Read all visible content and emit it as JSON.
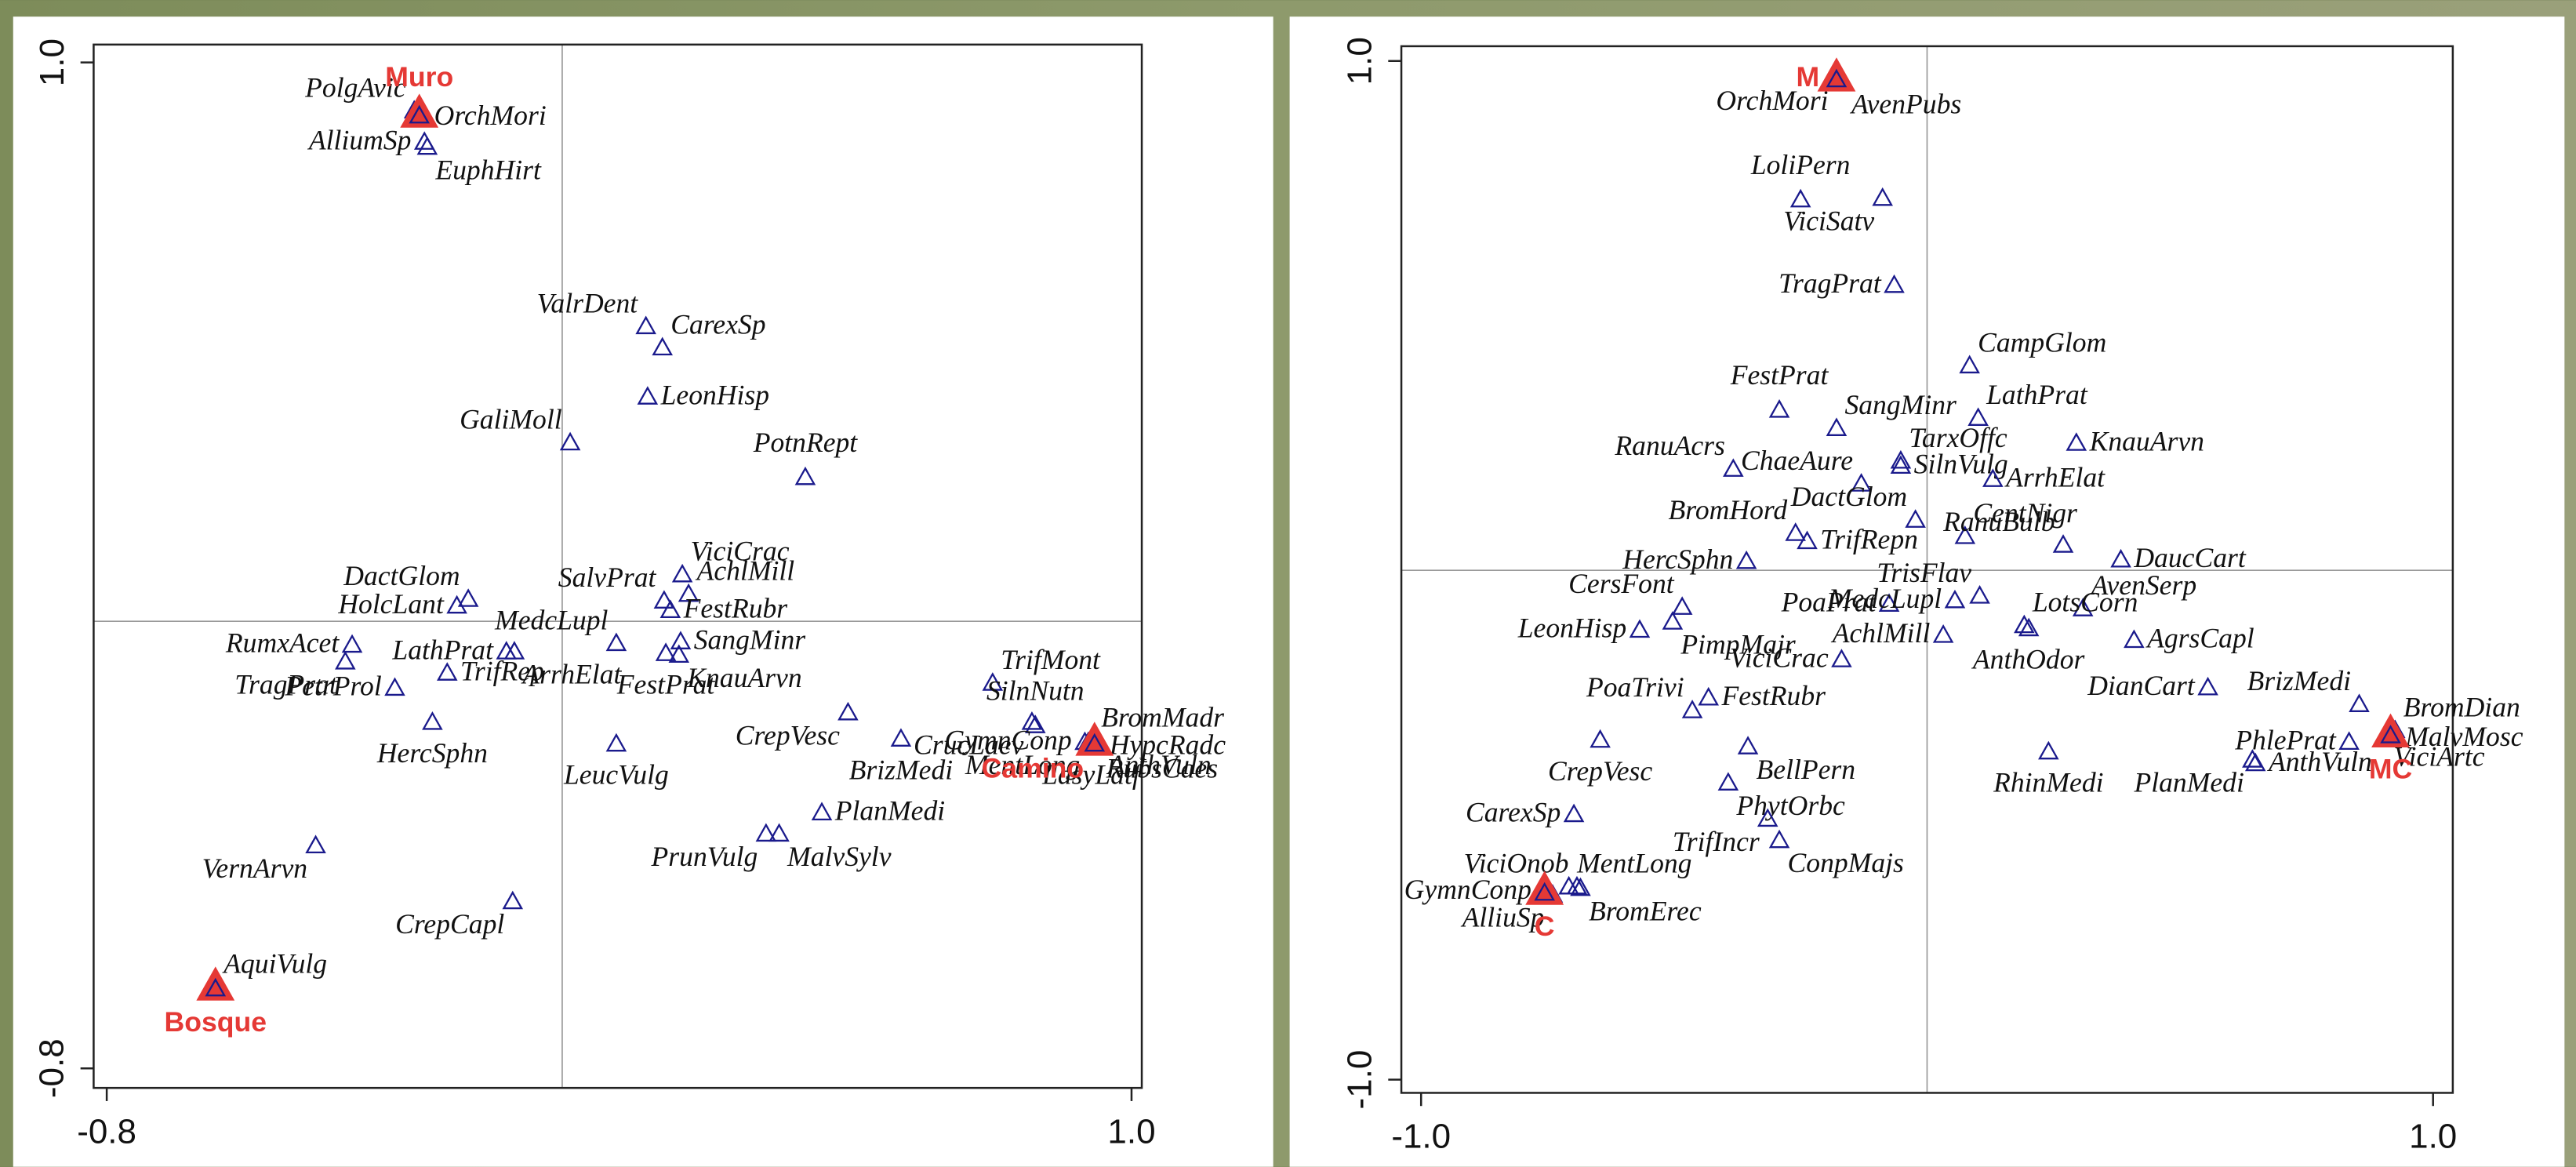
{
  "chart_data": [
    {
      "type": "scatter",
      "xlim": [
        -0.823,
        1.018
      ],
      "ylim": [
        -0.835,
        1.032
      ],
      "xticks": [
        -0.8,
        {
          "value": 1,
          "label": "1.0"
        }
      ],
      "yticks": [
        -0.8,
        {
          "value": 1,
          "label": "1.0"
        }
      ],
      "species": {
        "color": "#1a1a8c",
        "labels": [
          "PolgAvic",
          "OrchMori",
          "AlliumSp",
          "EuphHirt",
          "ValrDent",
          "CarexSp",
          "LeonHisp",
          "GaliMoll",
          "PotnRept",
          "ViciCrac",
          "AchlMill",
          "SalvPrat",
          "FestRubr",
          "DactGlom",
          "HolcLant",
          "MedcLupl",
          "SangMinr",
          "KnauArvn",
          "LathPrat",
          "ArrhElat",
          "RumxAcet",
          "TragPrat",
          "TrifRep",
          "FestPrat",
          "PetrProl",
          "HercSphn",
          "TrifMont",
          "SilnNutn",
          "CrucLaev",
          "CrepVesc",
          "BrizMedi",
          "PlanMedi",
          "BromMadr",
          "GymnConp",
          "HypcRadc",
          "RubsCaes",
          "LasyLatf",
          "MentLong",
          "AnthVuln",
          "LeucVulg",
          "PrunVulg",
          "MalvSylv",
          "VernArvn",
          "CrepCapl",
          "AquiVulg"
        ],
        "x": [
          -0.26,
          -0.248,
          -0.242,
          -0.237,
          0.147,
          0.176,
          0.15,
          0.014,
          0.427,
          0.211,
          0.222,
          0.179,
          0.19,
          -0.165,
          -0.185,
          0.095,
          0.208,
          0.205,
          -0.098,
          -0.084,
          -0.369,
          -0.381,
          -0.202,
          0.182,
          -0.294,
          -0.228,
          0.756,
          0.831,
          0.825,
          0.502,
          0.595,
          0.456,
          0.932,
          0.918,
          0.938,
          0.941,
          0.929,
          0.924,
          0.944,
          0.095,
          0.358,
          0.381,
          -0.433,
          -0.087,
          -0.609
        ],
        "y": [
          0.912,
          0.9,
          0.856,
          0.847,
          0.526,
          0.488,
          0.4,
          0.318,
          0.256,
          0.082,
          0.047,
          0.035,
          0.018,
          0.038,
          0.026,
          -0.041,
          -0.038,
          -0.062,
          -0.056,
          -0.056,
          -0.044,
          -0.074,
          -0.094,
          -0.059,
          -0.121,
          -0.182,
          -0.112,
          -0.188,
          -0.182,
          -0.165,
          -0.212,
          -0.344,
          -0.215,
          -0.218,
          -0.226,
          -0.224,
          -0.221,
          -0.218,
          -0.218,
          -0.221,
          -0.382,
          -0.382,
          -0.403,
          -0.503,
          -0.656
        ]
      },
      "sites": {
        "color": "#e53935",
        "labels": [
          "Muro",
          "Bosque",
          "Camino"
        ],
        "x": [
          -0.251,
          -0.609,
          0.935
        ],
        "y": [
          0.906,
          -0.656,
          -0.218
        ]
      }
    },
    {
      "type": "scatter",
      "xlim": [
        -1.039,
        1.039
      ],
      "ylim": [
        -1.026,
        1.029
      ],
      "xticks": [
        {
          "value": -1,
          "label": "-1.0"
        },
        {
          "value": 1,
          "label": "1.0"
        }
      ],
      "yticks": [
        {
          "value": -1,
          "label": "-1.0"
        },
        {
          "value": 1,
          "label": "1.0"
        }
      ],
      "species": {
        "color": "#1a1a8c",
        "labels": [
          "OrchMori",
          "AvenPubs",
          "LoliPern",
          "ViciSatv",
          "TragPrat",
          "CampGlom",
          "FestPrat",
          "SangMinr",
          "LathPrat",
          "TarxOffc",
          "RanuAcrs",
          "ChaeAure",
          "SilnVulg",
          "KnauArvn",
          "ArrhElat",
          "BromHord",
          "DactGlom",
          "CentNigr",
          "TrifRepn",
          "HercSphn",
          "RanuBulb",
          "DaucCart",
          "TrisFlav",
          "AvenSerp",
          "LotsCorn",
          "PoaPrat",
          "MedcLupl",
          "CersFont",
          "LeonHisp",
          "PimpMajr",
          "AchlMill",
          "AnthOdor",
          "AgrsCapl",
          "ViciCrac",
          "PoaTrivi",
          "FestRubr",
          "DianCart",
          "BrizMedi",
          "PhlePrat",
          "BromDian",
          "MalvMosc",
          "ViciArtc",
          "CrepVesc",
          "BellPern",
          "RhinMedi",
          "PlanMedi",
          "AnthVuln",
          "CarexSp",
          "PhytOrbc",
          "TrifIncr",
          "ConpMajs",
          "ViciOnob",
          "MentLong",
          "GymnConp",
          "AlliuSp",
          "BromErec"
        ],
        "x": [
          -0.179,
          -0.166,
          -0.25,
          -0.088,
          -0.065,
          0.084,
          -0.292,
          -0.179,
          0.101,
          -0.052,
          -0.383,
          -0.13,
          -0.052,
          0.295,
          0.13,
          -0.26,
          -0.023,
          0.075,
          -0.237,
          -0.357,
          0.269,
          0.383,
          0.104,
          0.308,
          0.192,
          -0.075,
          0.055,
          -0.484,
          -0.568,
          -0.503,
          0.032,
          0.201,
          0.409,
          -0.169,
          -0.464,
          -0.432,
          0.555,
          0.854,
          0.834,
          0.925,
          0.919,
          0.906,
          -0.646,
          -0.354,
          0.24,
          0.643,
          0.649,
          -0.698,
          -0.393,
          -0.315,
          -0.292,
          -0.692,
          -0.708,
          -0.756,
          -0.74,
          -0.685
        ],
        "y": [
          0.965,
          0.958,
          0.726,
          0.729,
          0.558,
          0.4,
          0.313,
          0.277,
          0.297,
          0.213,
          0.197,
          0.168,
          0.203,
          0.248,
          0.177,
          0.071,
          0.097,
          0.065,
          0.055,
          0.016,
          0.048,
          0.019,
          -0.052,
          -0.077,
          -0.11,
          -0.068,
          -0.061,
          -0.074,
          -0.119,
          -0.103,
          -0.129,
          -0.116,
          -0.139,
          -0.177,
          -0.277,
          -0.252,
          -0.232,
          -0.265,
          -0.339,
          -0.316,
          -0.332,
          -0.323,
          -0.335,
          -0.348,
          -0.358,
          -0.374,
          -0.381,
          -0.481,
          -0.419,
          -0.49,
          -0.532,
          -0.623,
          -0.623,
          -0.632,
          -0.639,
          -0.626
        ]
      },
      "sites": {
        "color": "#e53935",
        "labels": [
          "M",
          "C",
          "MC"
        ],
        "x": [
          -0.179,
          -0.756,
          0.916
        ],
        "y": [
          0.965,
          -0.632,
          -0.323
        ]
      }
    }
  ]
}
